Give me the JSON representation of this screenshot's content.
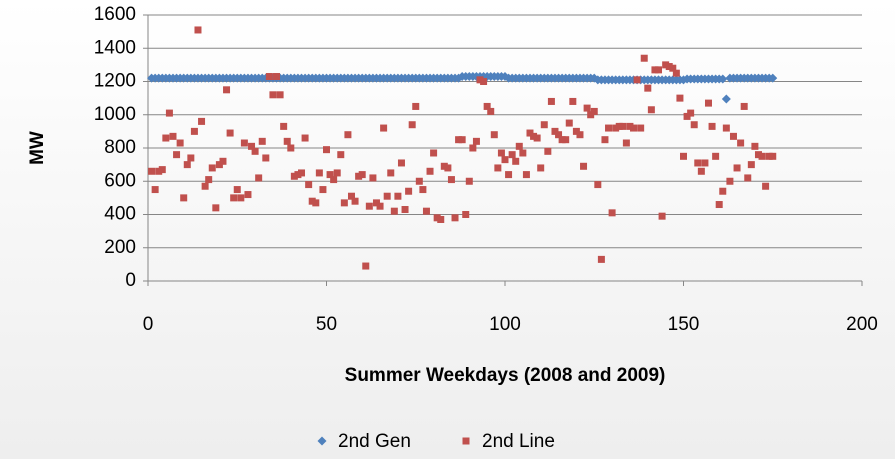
{
  "chart_data": {
    "type": "scatter",
    "x_label": "Summer Weekdays (2008 and 2009)",
    "y_label": "MW",
    "xlim": [
      0,
      200
    ],
    "xticks": [
      0,
      50,
      100,
      150,
      200
    ],
    "ylim": [
      0,
      1600
    ],
    "yticks": [
      0,
      200,
      400,
      600,
      800,
      1000,
      1200,
      1400,
      1600
    ],
    "grid": true,
    "legend": "bottom",
    "x": [
      1,
      2,
      3,
      4,
      5,
      6,
      7,
      8,
      9,
      10,
      11,
      12,
      13,
      14,
      15,
      16,
      17,
      18,
      19,
      20,
      21,
      22,
      23,
      24,
      25,
      26,
      27,
      28,
      29,
      30,
      31,
      32,
      33,
      34,
      35,
      36,
      37,
      38,
      39,
      40,
      41,
      42,
      43,
      44,
      45,
      46,
      47,
      48,
      49,
      50,
      51,
      52,
      53,
      54,
      55,
      56,
      57,
      58,
      59,
      60,
      61,
      62,
      63,
      64,
      65,
      66,
      67,
      68,
      69,
      70,
      71,
      72,
      73,
      74,
      75,
      76,
      77,
      78,
      79,
      80,
      81,
      82,
      83,
      84,
      85,
      86,
      87,
      88,
      89,
      90,
      91,
      92,
      93,
      94,
      95,
      96,
      97,
      98,
      99,
      100,
      101,
      102,
      103,
      104,
      105,
      106,
      107,
      108,
      109,
      110,
      111,
      112,
      113,
      114,
      115,
      116,
      117,
      118,
      119,
      120,
      121,
      122,
      123,
      124,
      125,
      126,
      127,
      128,
      129,
      130,
      131,
      132,
      133,
      134,
      135,
      136,
      137,
      138,
      139,
      140,
      141,
      142,
      143,
      144,
      145,
      146,
      147,
      148,
      149,
      150,
      151,
      152,
      153,
      154,
      155,
      156,
      157,
      158,
      159,
      160,
      161,
      162,
      163,
      164,
      165,
      166,
      167,
      168,
      169,
      170,
      171,
      172,
      173,
      174,
      175
    ],
    "series": [
      {
        "name": "2nd Gen",
        "color": "#4f81bd",
        "marker": "diamond",
        "values": [
          1220,
          1220,
          1220,
          1220,
          1220,
          1220,
          1220,
          1220,
          1220,
          1220,
          1220,
          1220,
          1220,
          1220,
          1220,
          1220,
          1220,
          1220,
          1220,
          1220,
          1220,
          1220,
          1220,
          1220,
          1220,
          1220,
          1220,
          1220,
          1220,
          1220,
          1220,
          1220,
          1220,
          1220,
          1220,
          1220,
          1220,
          1220,
          1220,
          1220,
          1220,
          1220,
          1220,
          1220,
          1220,
          1220,
          1220,
          1220,
          1220,
          1220,
          1220,
          1220,
          1220,
          1220,
          1220,
          1220,
          1220,
          1220,
          1220,
          1220,
          1220,
          1220,
          1220,
          1220,
          1220,
          1220,
          1220,
          1220,
          1220,
          1220,
          1220,
          1220,
          1220,
          1220,
          1220,
          1220,
          1220,
          1220,
          1220,
          1220,
          1220,
          1220,
          1220,
          1220,
          1220,
          1220,
          1220,
          1230,
          1230,
          1230,
          1230,
          1230,
          1230,
          1230,
          1230,
          1230,
          1230,
          1230,
          1230,
          1230,
          1220,
          1220,
          1220,
          1220,
          1220,
          1220,
          1220,
          1220,
          1220,
          1220,
          1220,
          1220,
          1220,
          1220,
          1220,
          1220,
          1220,
          1220,
          1220,
          1220,
          1220,
          1220,
          1220,
          1220,
          1220,
          1210,
          1210,
          1210,
          1210,
          1210,
          1210,
          1210,
          1210,
          1210,
          1210,
          1210,
          1210,
          1210,
          1210,
          1210,
          1210,
          1210,
          1210,
          1210,
          1210,
          1210,
          1210,
          1210,
          1210,
          1210,
          1215,
          1215,
          1215,
          1215,
          1215,
          1215,
          1215,
          1215,
          1215,
          1215,
          1215,
          1095,
          1220,
          1220,
          1220,
          1220,
          1220,
          1220,
          1220,
          1220,
          1220,
          1220,
          1220,
          1220,
          1220
        ]
      },
      {
        "name": "2nd Line",
        "color": "#c0504d",
        "marker": "square",
        "values": [
          660,
          550,
          660,
          670,
          860,
          1010,
          870,
          760,
          830,
          500,
          700,
          740,
          900,
          1510,
          960,
          570,
          610,
          680,
          440,
          700,
          720,
          1150,
          890,
          500,
          550,
          500,
          830,
          520,
          810,
          780,
          620,
          840,
          740,
          1230,
          1120,
          1230,
          1120,
          930,
          840,
          800,
          630,
          640,
          650,
          860,
          580,
          480,
          470,
          650,
          550,
          790,
          640,
          610,
          650,
          760,
          470,
          880,
          510,
          480,
          630,
          640,
          90,
          450,
          620,
          470,
          450,
          920,
          510,
          650,
          420,
          510,
          710,
          430,
          540,
          940,
          1050,
          600,
          550,
          420,
          660,
          770,
          380,
          370,
          690,
          680,
          610,
          380,
          850,
          850,
          400,
          600,
          800,
          840,
          1210,
          1200,
          1050,
          1020,
          880,
          680,
          770,
          730,
          640,
          760,
          720,
          810,
          770,
          640,
          890,
          870,
          860,
          680,
          940,
          780,
          1080,
          900,
          880,
          850,
          850,
          950,
          1080,
          900,
          880,
          690,
          1040,
          1000,
          1020,
          580,
          130,
          850,
          920,
          410,
          920,
          930,
          930,
          830,
          930,
          920,
          1210,
          920,
          1340,
          1160,
          1030,
          1270,
          1270,
          390,
          1300,
          1290,
          1280,
          1250,
          1100,
          750,
          990,
          1010,
          940,
          710,
          660,
          710,
          1070,
          930,
          750,
          460,
          540,
          920,
          600,
          870,
          680,
          830,
          1050,
          620,
          700,
          810,
          760,
          750,
          570,
          750,
          750
        ]
      }
    ]
  }
}
